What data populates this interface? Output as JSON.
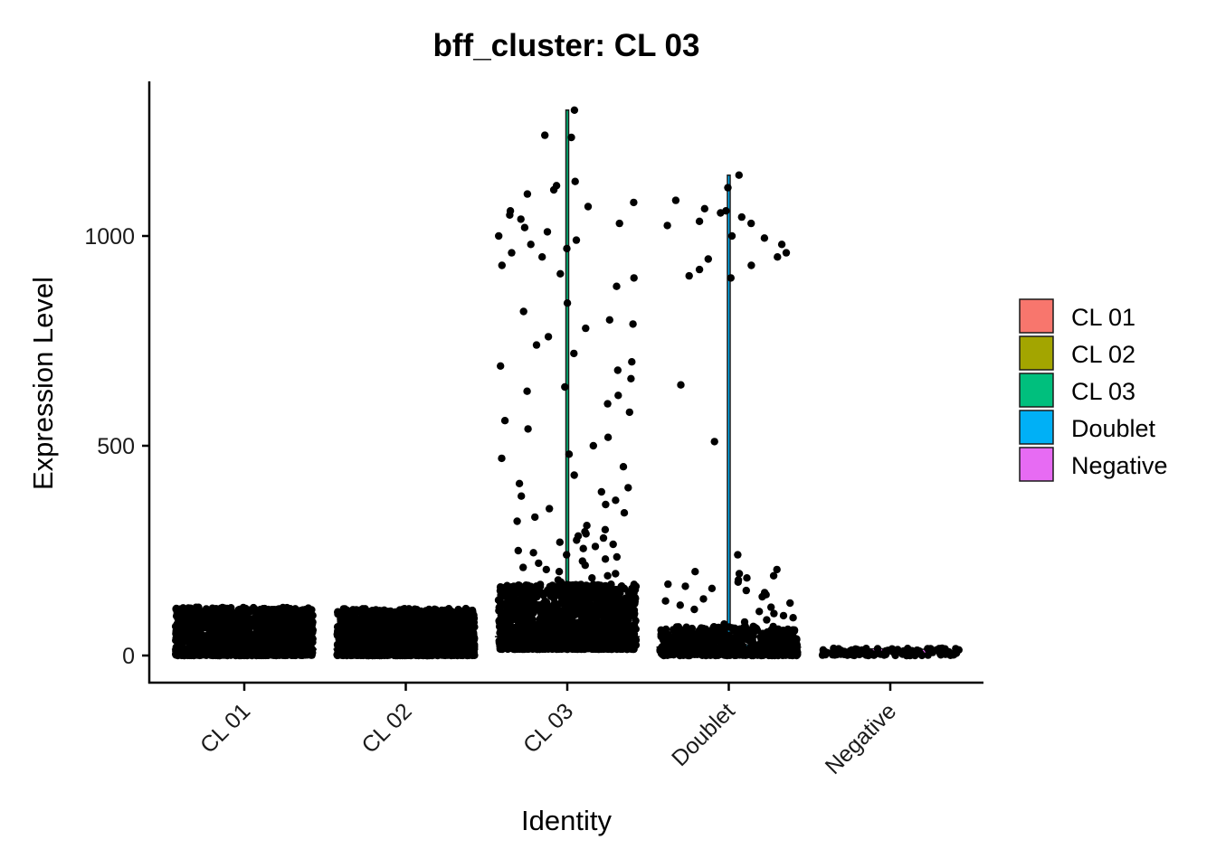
{
  "chart_data": {
    "type": "violin",
    "title": "bff_cluster: CL 03",
    "xlabel": "Identity",
    "ylabel": "Expression Level",
    "categories": [
      "CL 01",
      "CL 02",
      "CL 03",
      "Doublet",
      "Negative"
    ],
    "colors": [
      "#F8766D",
      "#A3A500",
      "#00BF7D",
      "#00B0F6",
      "#E76BF3"
    ],
    "y_ticks": [
      0,
      500,
      1000
    ],
    "y_tick_labels": [
      "0",
      "500",
      "1000"
    ],
    "ylim": [
      -60,
      1370
    ],
    "legend": {
      "position": "right",
      "entries": [
        "CL 01",
        "CL 02",
        "CL 03",
        "Doublet",
        "Negative"
      ]
    },
    "grid": false,
    "series": [
      {
        "name": "CL 01",
        "dense_range": [
          0,
          115
        ],
        "dense_n": 1400,
        "max": 115,
        "median": 15,
        "outliers": []
      },
      {
        "name": "CL 02",
        "dense_range": [
          0,
          112
        ],
        "dense_n": 1600,
        "max": 112,
        "median": 15,
        "outliers": []
      },
      {
        "name": "CL 03",
        "dense_range": [
          15,
          170
        ],
        "dense_n": 1600,
        "max": 1300,
        "median": 45,
        "outliers": [
          1300,
          1240,
          1235,
          1130,
          1120,
          1110,
          1100,
          1080,
          1070,
          1060,
          1050,
          1040,
          1030,
          1020,
          1010,
          1000,
          990,
          980,
          970,
          960,
          950,
          930,
          910,
          900,
          880,
          840,
          820,
          800,
          790,
          780,
          760,
          740,
          720,
          700,
          690,
          680,
          660,
          640,
          630,
          620,
          600,
          580,
          560,
          540,
          520,
          500,
          480,
          470,
          450,
          430,
          410,
          400,
          390,
          380,
          370,
          360,
          350,
          340,
          330,
          320,
          310,
          300,
          295,
          290,
          285,
          280,
          275,
          270,
          265,
          260,
          255,
          250,
          245,
          240,
          235,
          230,
          225,
          220,
          215,
          210,
          205,
          200,
          195,
          190,
          185,
          180,
          175
        ]
      },
      {
        "name": "Doublet",
        "dense_range": [
          0,
          70
        ],
        "dense_n": 600,
        "max": 1145,
        "median": 20,
        "outliers": [
          1145,
          1115,
          1085,
          1065,
          1060,
          1055,
          1045,
          1035,
          1030,
          1025,
          1000,
          995,
          980,
          960,
          950,
          945,
          930,
          920,
          905,
          900,
          645,
          510,
          240,
          205,
          200,
          195,
          190,
          185,
          180,
          175,
          170,
          165,
          160,
          155,
          150,
          145,
          140,
          135,
          130,
          125,
          120,
          115,
          110,
          105,
          100,
          95,
          90,
          85,
          80,
          75
        ]
      },
      {
        "name": "Negative",
        "dense_range": [
          0,
          18
        ],
        "dense_n": 120,
        "max": 18,
        "median": 10,
        "outliers": []
      }
    ]
  }
}
